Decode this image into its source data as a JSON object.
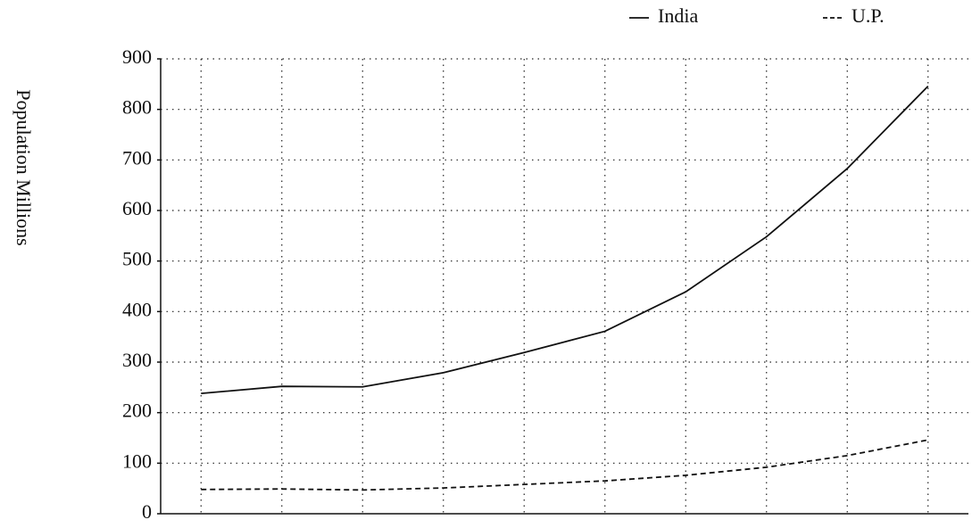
{
  "chart_data": {
    "type": "line",
    "y_label": "Population Millions",
    "categories": [
      null,
      null,
      null,
      null,
      null,
      null,
      null,
      null,
      null,
      null
    ],
    "series": [
      {
        "name": "India",
        "color": "#111111",
        "dash": "solid",
        "values": [
          238,
          252,
          251,
          279,
          319,
          361,
          439,
          548,
          683,
          846
        ]
      },
      {
        "name": "U.P.",
        "color": "#111111",
        "dash": "dashed",
        "values": [
          48,
          49,
          47,
          51,
          58,
          65,
          76,
          92,
          115,
          146
        ]
      }
    ],
    "ylim": [
      0,
      900
    ],
    "yticks": [
      0,
      100,
      200,
      300,
      400,
      500,
      600,
      700,
      800,
      900
    ],
    "grid": true,
    "legend": "top-right"
  }
}
